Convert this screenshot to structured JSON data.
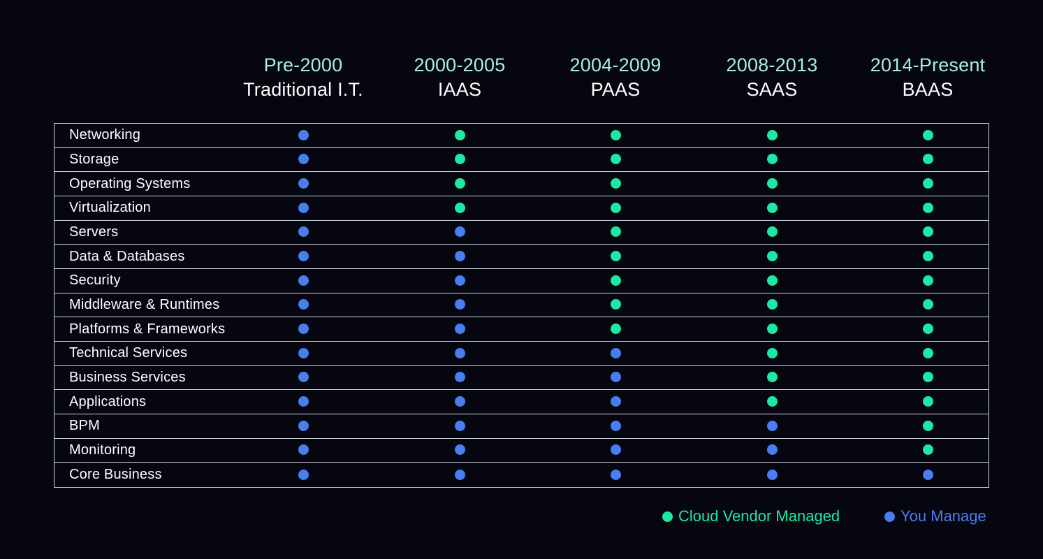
{
  "colors": {
    "vendor": "#1ee8a4",
    "you": "#4a7df0",
    "header_years": "#a9f0da",
    "legend_vendor_text": "#1ee8a4",
    "legend_you_text": "#4a7df0"
  },
  "columns": [
    {
      "years": "Pre-2000",
      "model": "Traditional I.T."
    },
    {
      "years": "2000-2005",
      "model": "IAAS"
    },
    {
      "years": "2004-2009",
      "model": "PAAS"
    },
    {
      "years": "2008-2013",
      "model": "SAAS"
    },
    {
      "years": "2014-Present",
      "model": "BAAS"
    }
  ],
  "rows": [
    {
      "label": "Networking",
      "cells": [
        "you",
        "vendor",
        "vendor",
        "vendor",
        "vendor"
      ]
    },
    {
      "label": "Storage",
      "cells": [
        "you",
        "vendor",
        "vendor",
        "vendor",
        "vendor"
      ]
    },
    {
      "label": "Operating Systems",
      "cells": [
        "you",
        "vendor",
        "vendor",
        "vendor",
        "vendor"
      ]
    },
    {
      "label": "Virtualization",
      "cells": [
        "you",
        "vendor",
        "vendor",
        "vendor",
        "vendor"
      ]
    },
    {
      "label": "Servers",
      "cells": [
        "you",
        "you",
        "vendor",
        "vendor",
        "vendor"
      ]
    },
    {
      "label": "Data & Databases",
      "cells": [
        "you",
        "you",
        "vendor",
        "vendor",
        "vendor"
      ]
    },
    {
      "label": "Security",
      "cells": [
        "you",
        "you",
        "vendor",
        "vendor",
        "vendor"
      ]
    },
    {
      "label": "Middleware & Runtimes",
      "cells": [
        "you",
        "you",
        "vendor",
        "vendor",
        "vendor"
      ]
    },
    {
      "label": "Platforms & Frameworks",
      "cells": [
        "you",
        "you",
        "vendor",
        "vendor",
        "vendor"
      ]
    },
    {
      "label": "Technical Services",
      "cells": [
        "you",
        "you",
        "you",
        "vendor",
        "vendor"
      ]
    },
    {
      "label": "Business Services",
      "cells": [
        "you",
        "you",
        "you",
        "vendor",
        "vendor"
      ]
    },
    {
      "label": "Applications",
      "cells": [
        "you",
        "you",
        "you",
        "vendor",
        "vendor"
      ]
    },
    {
      "label": "BPM",
      "cells": [
        "you",
        "you",
        "you",
        "you",
        "vendor"
      ]
    },
    {
      "label": "Monitoring",
      "cells": [
        "you",
        "you",
        "you",
        "you",
        "vendor"
      ]
    },
    {
      "label": "Core Business",
      "cells": [
        "you",
        "you",
        "you",
        "you",
        "you"
      ]
    }
  ],
  "legend": {
    "vendor_label": "Cloud Vendor Managed",
    "you_label": "You Manage"
  }
}
